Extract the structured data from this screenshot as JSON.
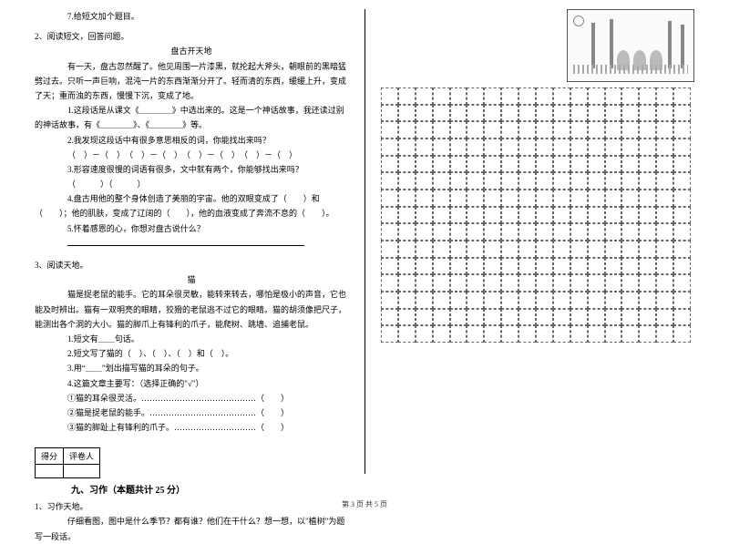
{
  "left": {
    "q7": "7.给短文加个题目。",
    "sec2_intro": "2、阅读短文，回答问题。",
    "title2": "盘古开天地",
    "para2a": "有一天，盘古忽然醒了。他见周围一片漆黑，就抡起大斧头，朝眼前的黑暗猛劈过去。只听一声巨响，混沌一片的东西渐渐分开了。轻而清的东西，缓缓上升，变成了天；重而浊的东西，慢慢下沉，变成了地。",
    "q2_1a": "1.这段话是从课文《＿＿＿＿》中选出来的。这是一个神话故事，我还读过别的神话故事，有《＿＿＿＿》、《＿＿＿＿》等。",
    "q2_2": "2.我发现这段话中有很多意思相反的词，你能找出来吗？",
    "q2_2b": "（　）－（　）　（　）－（　）　（　）－（　）　（　）－（　）",
    "q2_3": "3.形容速度很慢的词语有很多，文中就有两个，你能够找出来吗？",
    "q2_3b": "（　　　）（　　　）",
    "q2_4": "4.盘古用他的整个身体创造了美丽的宇宙。他的双眼变成了（　　）和（　　）；他的肌肤，变成了辽阔的（　　），他的血液变成了奔流不息的（　　）。",
    "q2_5": "5.怀着感恩的心，你想对盘古说什么？",
    "sec3_intro": "3、阅读天地。",
    "title3": "猫",
    "para3": "猫是捉老鼠的能手。它的耳朵很灵敏，能转来转去，哪怕是极小的声音，它也能及时辨出。猫有一双明亮的眼睛，狡猾的老鼠逃不过它的眼睛。猫的胡须像把尺子，能测出各个洞的大小。猫的脚爪上有锋利的爪子，能爬树、跳墙、追捕老鼠。",
    "q3_1": "1.短文有＿＿句话。",
    "q3_2": "2.短文写了猫的（　）、（　）、（　）和（　）。",
    "q3_3": "3.用“＿＿”划出描写猫的耳朵的句子。",
    "q3_4": "4.这篇文章主要写：（选择正确的\"√\"）",
    "q3_4a": "①猫的耳朵很灵活。……………………………………（　　）",
    "q3_4b": "②猫是捉老鼠的能手。…………………………………（　　）",
    "q3_4c": "③猫的脚趾上有锋利的爪子。…………………………（　　）",
    "score_h1": "得分",
    "score_h2": "评卷人",
    "section9": "九、习作（本题共计 25 分）",
    "xz_intro": "1、习作天地。",
    "xz_body": "仔细看图，图中是什么季节？都有谁？他们在干什么？想一想，以\"植树\"为题写一段话。"
  },
  "footer": "第 3 页 共 5 页",
  "grid": {
    "cols": 18,
    "rows": 15
  }
}
